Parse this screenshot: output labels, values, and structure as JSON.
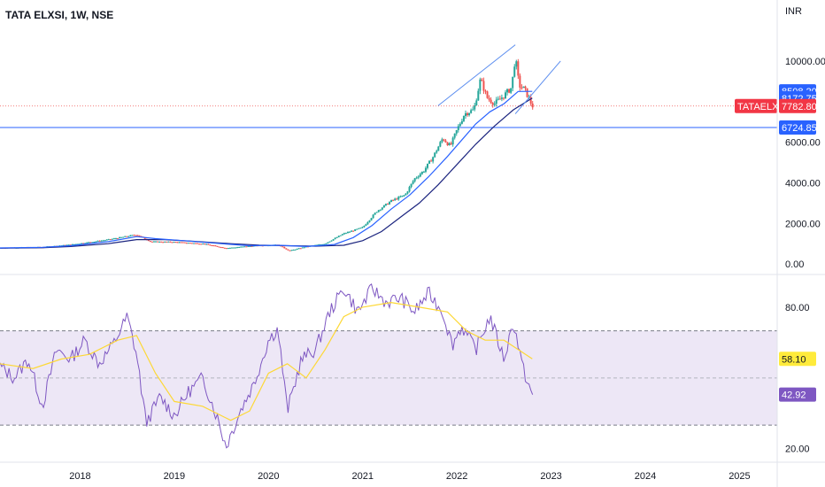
{
  "header": {
    "title": "TATA ELXSI, 1W, NSE",
    "currency": "INR"
  },
  "chart_data": [
    {
      "type": "candlestick",
      "title": "TATA ELXSI, 1W, NSE",
      "y_unit": "INR",
      "y_ticks": [
        "10000.00",
        "6000.00",
        "4000.00",
        "2000.00",
        "0.00"
      ],
      "y_tick_values": [
        10000,
        6000,
        4000,
        2000,
        0
      ],
      "ylim": [
        -300,
        11700
      ],
      "x_tick_labels": [
        "2018",
        "2019",
        "2020",
        "2021",
        "2022",
        "2023",
        "2024",
        "2025"
      ],
      "x_tick_years": [
        2018,
        2019,
        2020,
        2021,
        2022,
        2023,
        2024,
        2025
      ],
      "xlim": [
        2017.15,
        2025.4
      ],
      "close_series": [
        [
          2017.15,
          800
        ],
        [
          2017.6,
          830
        ],
        [
          2017.9,
          950
        ],
        [
          2018.3,
          1200
        ],
        [
          2018.6,
          1450
        ],
        [
          2018.75,
          1100
        ],
        [
          2019.0,
          1080
        ],
        [
          2019.3,
          1000
        ],
        [
          2019.55,
          780
        ],
        [
          2019.8,
          880
        ],
        [
          2020.1,
          960
        ],
        [
          2020.22,
          650
        ],
        [
          2020.4,
          850
        ],
        [
          2020.6,
          1000
        ],
        [
          2020.8,
          1500
        ],
        [
          2021.0,
          1800
        ],
        [
          2021.15,
          2600
        ],
        [
          2021.3,
          3100
        ],
        [
          2021.45,
          3400
        ],
        [
          2021.55,
          4200
        ],
        [
          2021.65,
          4600
        ],
        [
          2021.75,
          5300
        ],
        [
          2021.85,
          6200
        ],
        [
          2021.93,
          5800
        ],
        [
          2022.0,
          6600
        ],
        [
          2022.08,
          7400
        ],
        [
          2022.18,
          7600
        ],
        [
          2022.25,
          9100
        ],
        [
          2022.32,
          8200
        ],
        [
          2022.4,
          7900
        ],
        [
          2022.5,
          8300
        ],
        [
          2022.58,
          8700
        ],
        [
          2022.62,
          10200
        ],
        [
          2022.66,
          8800
        ],
        [
          2022.72,
          8600
        ],
        [
          2022.77,
          8100
        ],
        [
          2022.8,
          7783
        ]
      ],
      "ma_fast_series": [
        [
          2017.15,
          790
        ],
        [
          2017.6,
          820
        ],
        [
          2017.9,
          900
        ],
        [
          2018.3,
          1100
        ],
        [
          2018.6,
          1350
        ],
        [
          2018.8,
          1250
        ],
        [
          2019.1,
          1150
        ],
        [
          2019.5,
          1000
        ],
        [
          2019.8,
          900
        ],
        [
          2020.1,
          920
        ],
        [
          2020.4,
          860
        ],
        [
          2020.7,
          960
        ],
        [
          2020.9,
          1300
        ],
        [
          2021.1,
          1900
        ],
        [
          2021.3,
          2700
        ],
        [
          2021.5,
          3400
        ],
        [
          2021.7,
          4300
        ],
        [
          2021.9,
          5300
        ],
        [
          2022.05,
          6100
        ],
        [
          2022.2,
          6900
        ],
        [
          2022.35,
          7500
        ],
        [
          2022.5,
          7900
        ],
        [
          2022.65,
          8500
        ],
        [
          2022.8,
          8508
        ]
      ],
      "ma_slow_series": [
        [
          2017.15,
          780
        ],
        [
          2017.6,
          800
        ],
        [
          2017.9,
          860
        ],
        [
          2018.3,
          1000
        ],
        [
          2018.6,
          1200
        ],
        [
          2018.9,
          1200
        ],
        [
          2019.2,
          1120
        ],
        [
          2019.6,
          1000
        ],
        [
          2019.9,
          930
        ],
        [
          2020.2,
          900
        ],
        [
          2020.5,
          880
        ],
        [
          2020.8,
          920
        ],
        [
          2021.0,
          1150
        ],
        [
          2021.2,
          1600
        ],
        [
          2021.4,
          2300
        ],
        [
          2021.6,
          3000
        ],
        [
          2021.8,
          3900
        ],
        [
          2022.0,
          4900
        ],
        [
          2022.2,
          5900
        ],
        [
          2022.4,
          6800
        ],
        [
          2022.6,
          7600
        ],
        [
          2022.8,
          8173
        ]
      ],
      "channel_lines": [
        [
          [
            2021.8,
            7800
          ],
          [
            2022.62,
            10800
          ]
        ],
        [
          [
            2022.62,
            7400
          ],
          [
            2023.1,
            10000
          ]
        ]
      ],
      "horizontal_level": 6724.85,
      "badges": [
        {
          "label": "8508.20",
          "value": 8508.2,
          "color": "#2962ff"
        },
        {
          "label": "8172.75",
          "value": 8172.75,
          "color": "#2962ff"
        },
        {
          "label": "7782.80",
          "value": 7782.8,
          "color": "#f23645",
          "tag": "TATAELXSI"
        },
        {
          "label": "6724.85",
          "value": 6724.85,
          "color": "#2962ff"
        }
      ]
    },
    {
      "type": "line",
      "title": "",
      "y_ticks": [
        "80.00",
        "20.00"
      ],
      "y_tick_values": [
        80,
        20
      ],
      "ylim": [
        15,
        92
      ],
      "band": [
        30,
        70
      ],
      "midline": 50,
      "rsi_series": [
        [
          2017.15,
          55
        ],
        [
          2017.3,
          50
        ],
        [
          2017.45,
          58
        ],
        [
          2017.6,
          38
        ],
        [
          2017.75,
          62
        ],
        [
          2017.9,
          58
        ],
        [
          2018.05,
          66
        ],
        [
          2018.2,
          56
        ],
        [
          2018.35,
          64
        ],
        [
          2018.5,
          76
        ],
        [
          2018.6,
          60
        ],
        [
          2018.7,
          31
        ],
        [
          2018.85,
          42
        ],
        [
          2019.0,
          34
        ],
        [
          2019.15,
          44
        ],
        [
          2019.3,
          50
        ],
        [
          2019.45,
          34
        ],
        [
          2019.55,
          21
        ],
        [
          2019.7,
          36
        ],
        [
          2019.85,
          48
        ],
        [
          2020.0,
          66
        ],
        [
          2020.1,
          71
        ],
        [
          2020.2,
          36
        ],
        [
          2020.35,
          58
        ],
        [
          2020.5,
          62
        ],
        [
          2020.65,
          78
        ],
        [
          2020.8,
          88
        ],
        [
          2020.95,
          78
        ],
        [
          2021.1,
          88
        ],
        [
          2021.25,
          82
        ],
        [
          2021.4,
          84
        ],
        [
          2021.55,
          78
        ],
        [
          2021.7,
          86
        ],
        [
          2021.85,
          78
        ],
        [
          2021.95,
          64
        ],
        [
          2022.05,
          72
        ],
        [
          2022.2,
          62
        ],
        [
          2022.35,
          76
        ],
        [
          2022.5,
          58
        ],
        [
          2022.6,
          74
        ],
        [
          2022.7,
          54
        ],
        [
          2022.8,
          42.92
        ]
      ],
      "rsi_ma_series": [
        [
          2017.15,
          56
        ],
        [
          2017.5,
          54
        ],
        [
          2017.8,
          58
        ],
        [
          2018.1,
          60
        ],
        [
          2018.4,
          66
        ],
        [
          2018.6,
          68
        ],
        [
          2018.8,
          52
        ],
        [
          2019.0,
          40
        ],
        [
          2019.3,
          38
        ],
        [
          2019.6,
          32
        ],
        [
          2019.8,
          36
        ],
        [
          2020.0,
          52
        ],
        [
          2020.2,
          56
        ],
        [
          2020.4,
          50
        ],
        [
          2020.6,
          62
        ],
        [
          2020.8,
          76
        ],
        [
          2021.0,
          80
        ],
        [
          2021.3,
          82
        ],
        [
          2021.6,
          80
        ],
        [
          2021.9,
          78
        ],
        [
          2022.1,
          70
        ],
        [
          2022.3,
          66
        ],
        [
          2022.5,
          66
        ],
        [
          2022.8,
          58.1
        ]
      ],
      "badges": [
        {
          "label": "58.10",
          "value": 58.1,
          "color": "#ffeb3b",
          "text_color": "#131722"
        },
        {
          "label": "42.92",
          "value": 42.92,
          "color": "#7e57c2",
          "text_color": "#ffffff"
        }
      ]
    }
  ],
  "colors": {
    "up": "#26a69a",
    "down": "#ef5350",
    "ma_fast": "#2962ff",
    "ma_slow": "#1a237e",
    "rsi": "#7e57c2",
    "rsi_ma": "#fdd835",
    "band_fill": "#ede7f6"
  }
}
